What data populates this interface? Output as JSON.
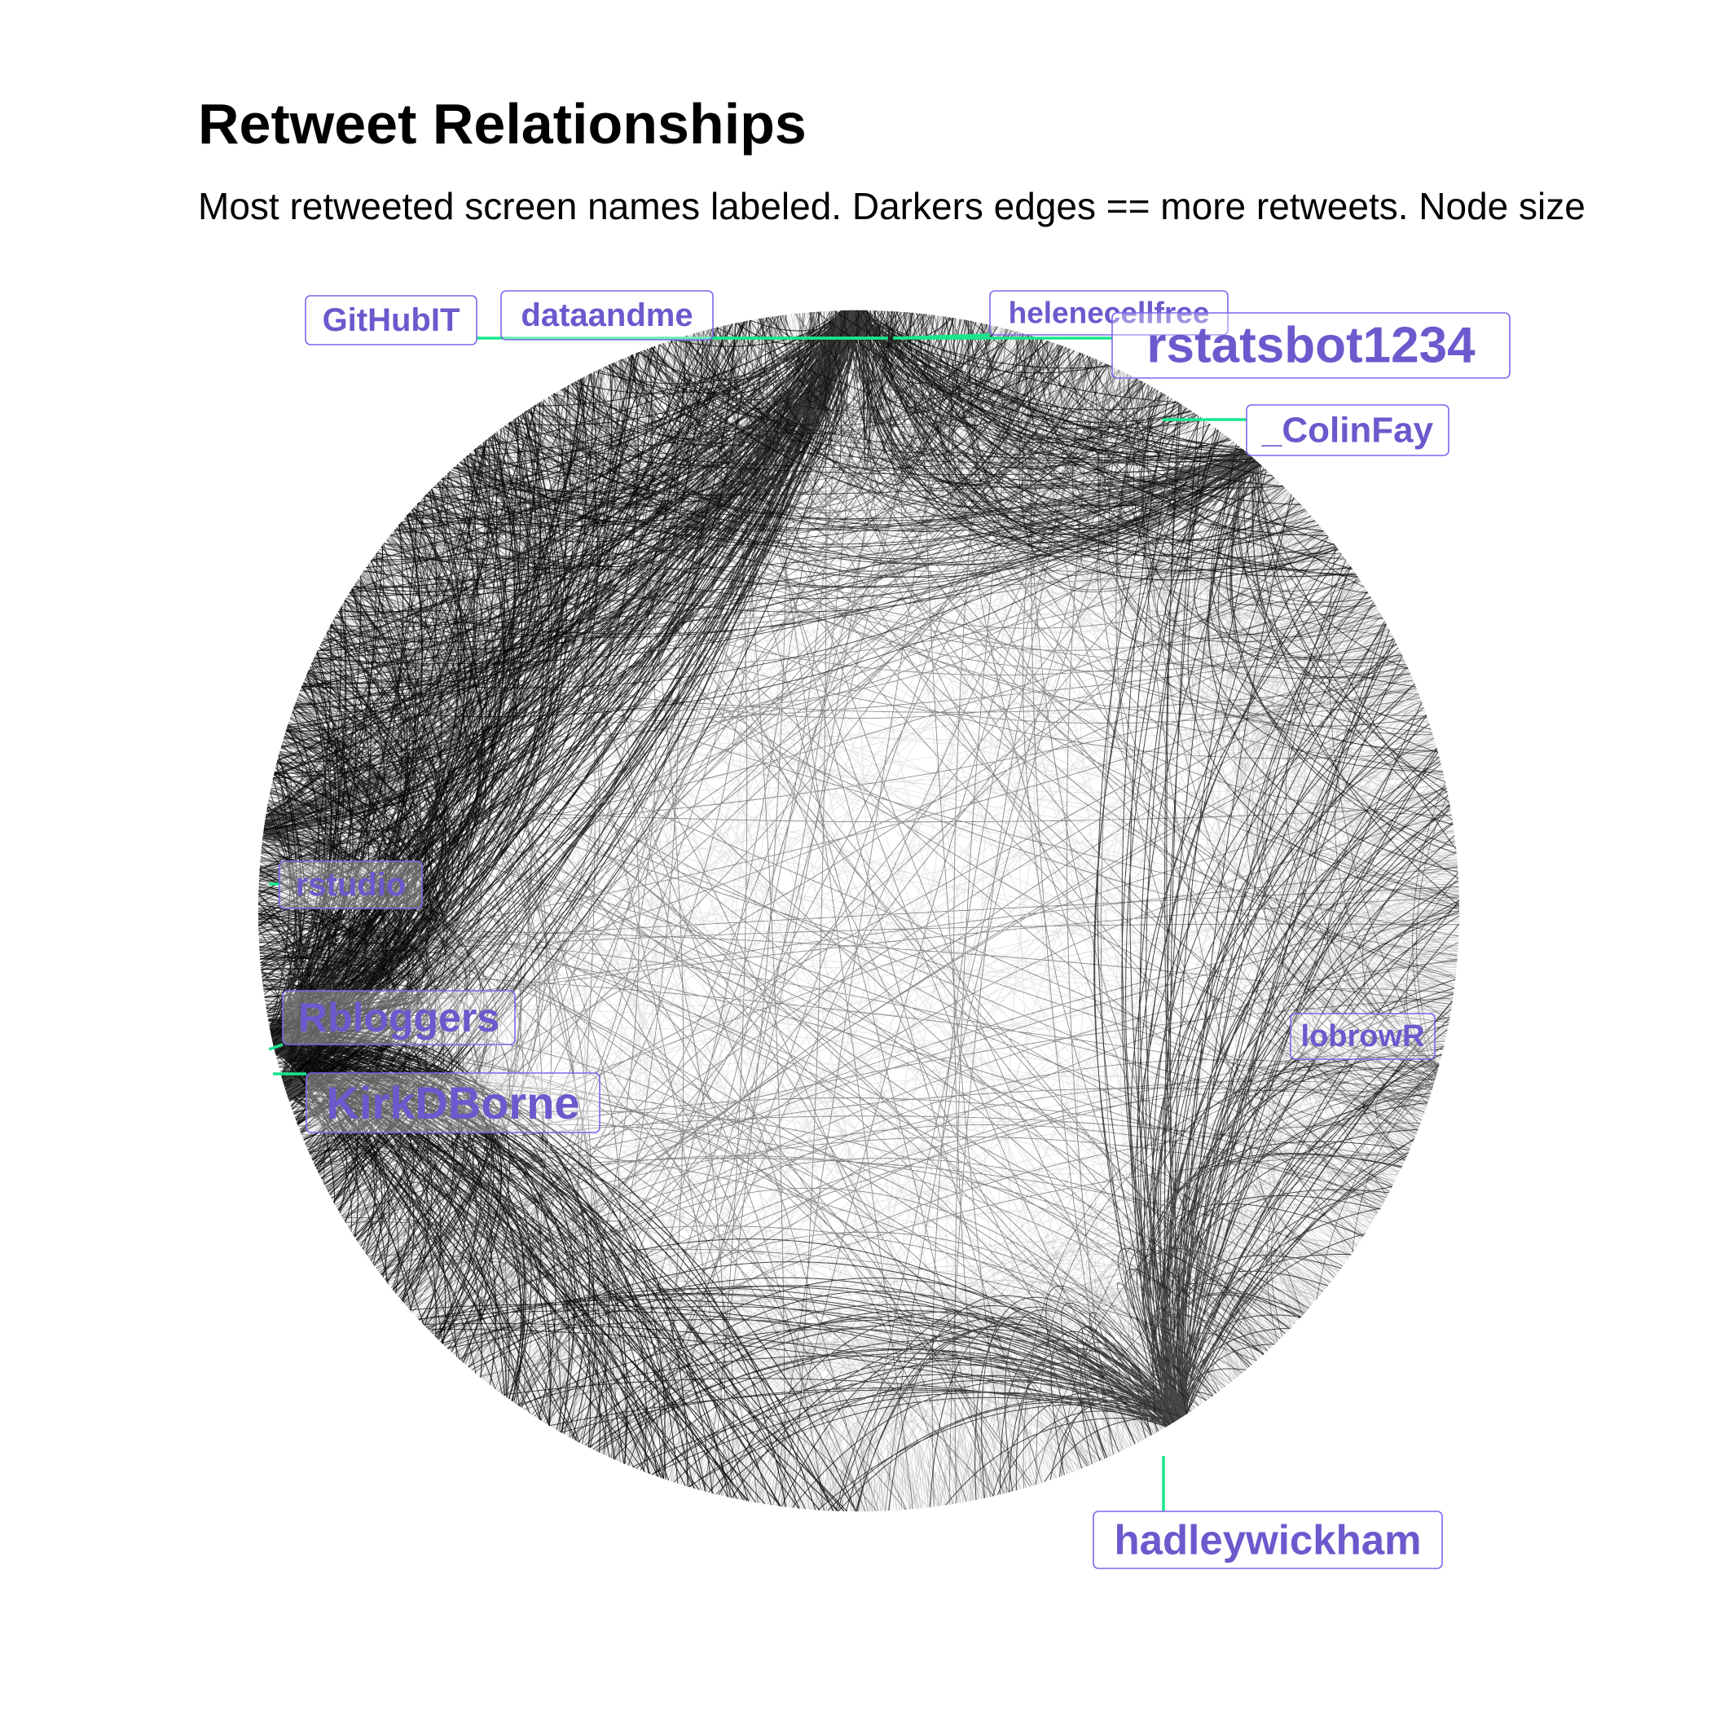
{
  "title": "Retweet Relationships",
  "subtitle": "Most retweeted screen names labeled. Darkers edges == more retweets. Node size",
  "colors": {
    "label_text": "#6a5acd",
    "label_border": "#7b68ee",
    "leader_line": "#19e68c",
    "edge": "#000000",
    "background": "#ffffff"
  },
  "labels": [
    {
      "name": "GitHubIT",
      "emphasis": "small"
    },
    {
      "name": "dataandme",
      "emphasis": "small"
    },
    {
      "name": "helenecellfree",
      "emphasis": "small"
    },
    {
      "name": "rstatsbot1234",
      "emphasis": "largest"
    },
    {
      "name": "_ColinFay",
      "emphasis": "medium"
    },
    {
      "name": "rstudio",
      "emphasis": "small"
    },
    {
      "name": "Rbloggers",
      "emphasis": "medium"
    },
    {
      "name": "KirkDBorne",
      "emphasis": "large"
    },
    {
      "name": "lobrowR",
      "emphasis": "small"
    },
    {
      "name": "hadleywickham",
      "emphasis": "medium"
    }
  ]
}
